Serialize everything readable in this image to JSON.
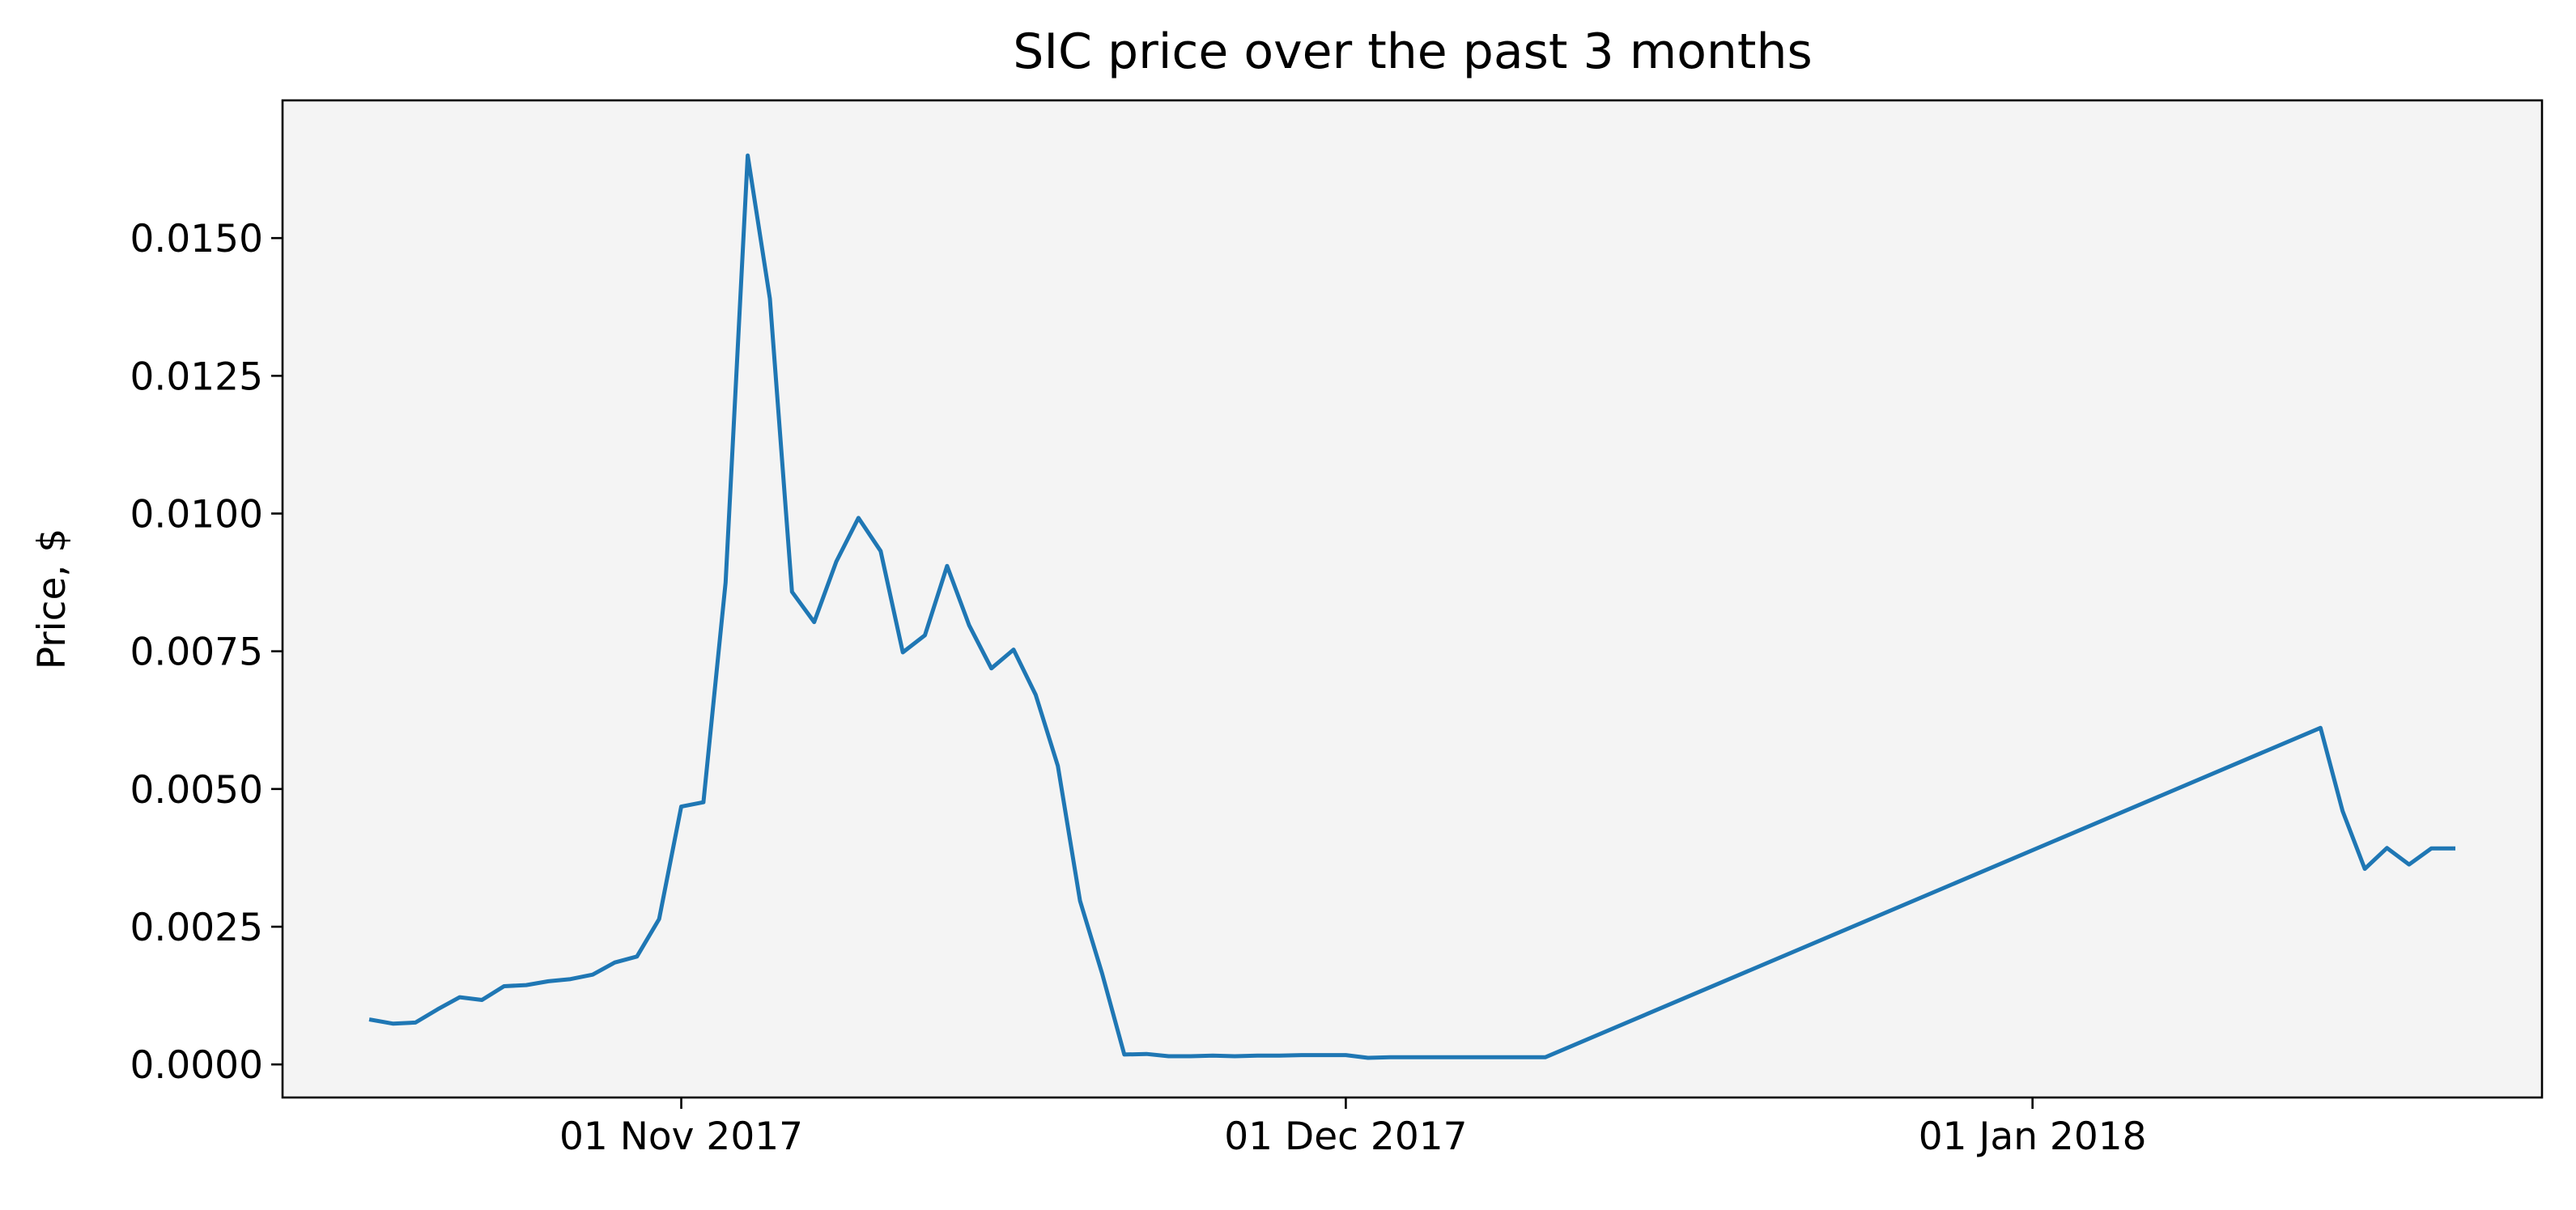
{
  "figure": {
    "title": "SIC price over the past 3 months",
    "background_color": "#ffffff",
    "plot_background_color": "#f4f4f4"
  },
  "chart_data": {
    "type": "line",
    "title": "SIC price over the past 3 months",
    "xlabel": "",
    "ylabel": "Price, $",
    "xlim": [
      "2017-10-14",
      "2018-01-24"
    ],
    "ylim": [
      -0.0006,
      0.0175
    ],
    "x_ticks": [
      {
        "value": "2017-11-01",
        "label": "01 Nov 2017"
      },
      {
        "value": "2017-12-01",
        "label": "01 Dec 2017"
      },
      {
        "value": "2018-01-01",
        "label": "01 Jan 2018"
      }
    ],
    "y_ticks": [
      {
        "value": 0.0,
        "label": "0.0000"
      },
      {
        "value": 0.0025,
        "label": "0.0025"
      },
      {
        "value": 0.005,
        "label": "0.0050"
      },
      {
        "value": 0.0075,
        "label": "0.0075"
      },
      {
        "value": 0.01,
        "label": "0.0100"
      },
      {
        "value": 0.0125,
        "label": "0.0125"
      },
      {
        "value": 0.015,
        "label": "0.0150"
      }
    ],
    "grid": false,
    "legend": false,
    "series": [
      {
        "color": "#1f77b4",
        "x": [
          "2017-10-18",
          "2017-10-19",
          "2017-10-20",
          "2017-10-21",
          "2017-10-22",
          "2017-10-23",
          "2017-10-24",
          "2017-10-25",
          "2017-10-26",
          "2017-10-27",
          "2017-10-28",
          "2017-10-29",
          "2017-10-30",
          "2017-10-31",
          "2017-11-01",
          "2017-11-02",
          "2017-11-03",
          "2017-11-04",
          "2017-11-05",
          "2017-11-06",
          "2017-11-07",
          "2017-11-08",
          "2017-11-09",
          "2017-11-10",
          "2017-11-11",
          "2017-11-12",
          "2017-11-13",
          "2017-11-14",
          "2017-11-15",
          "2017-11-16",
          "2017-11-17",
          "2017-11-18",
          "2017-11-19",
          "2017-11-20",
          "2017-11-21",
          "2017-11-22",
          "2017-11-23",
          "2017-11-24",
          "2017-11-25",
          "2017-11-26",
          "2017-11-27",
          "2017-11-28",
          "2017-11-29",
          "2017-11-30",
          "2017-12-01",
          "2017-12-02",
          "2017-12-03",
          "2017-12-04",
          "2017-12-05",
          "2017-12-06",
          "2017-12-07",
          "2017-12-08",
          "2017-12-09",
          "2017-12-10",
          "2018-01-14",
          "2018-01-15",
          "2018-01-16",
          "2018-01-17",
          "2018-01-18",
          "2018-01-19",
          "2018-01-20"
        ],
        "y": [
          0.00081,
          0.00074,
          0.00076,
          0.001,
          0.00122,
          0.00117,
          0.00142,
          0.00144,
          0.00151,
          0.00155,
          0.00163,
          0.00185,
          0.00196,
          0.00264,
          0.00468,
          0.00476,
          0.00875,
          0.0165,
          0.0139,
          0.00858,
          0.00803,
          0.00913,
          0.00992,
          0.00932,
          0.00748,
          0.00779,
          0.00905,
          0.00797,
          0.00719,
          0.00753,
          0.00671,
          0.00542,
          0.00297,
          0.00165,
          0.00018,
          0.00019,
          0.00015,
          0.00015,
          0.00016,
          0.00015,
          0.00016,
          0.00016,
          0.00017,
          0.00017,
          0.00017,
          0.00012,
          0.00013,
          0.00013,
          0.00013,
          0.00013,
          0.00013,
          0.00013,
          0.00013,
          0.00013,
          0.00611,
          0.0046,
          0.00355,
          0.00393,
          0.00363,
          0.00392,
          0.00392
        ]
      }
    ]
  }
}
